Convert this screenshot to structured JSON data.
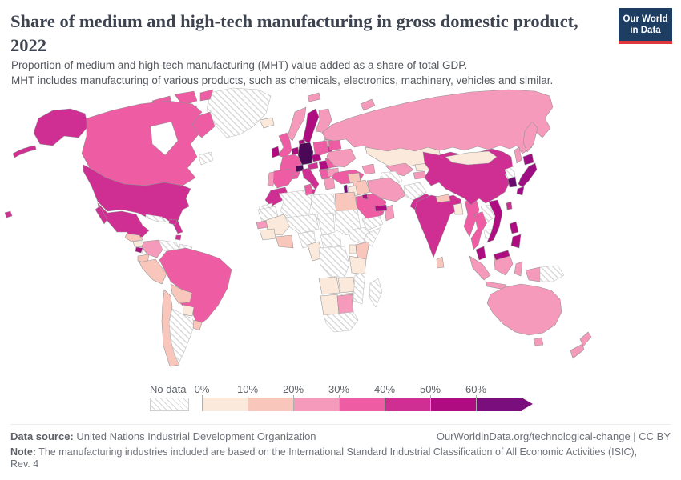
{
  "header": {
    "title": "Share of medium and high-tech manufacturing in gross domestic product, 2022",
    "subtitle_line1": "Proportion of medium and high-tech manufacturing (MHT) value added as a share of total GDP.",
    "subtitle_line2": "MHT includes manufacturing of various products, such as chemicals, electronics, machinery, vehicles and similar.",
    "logo_line1": "Our World",
    "logo_line2": "in Data",
    "logo_bg": "#1d3d63",
    "logo_accent": "#e0373c"
  },
  "footer": {
    "data_source_label": "Data source:",
    "data_source": "United Nations Industrial Development Organization",
    "attribution": "OurWorldinData.org/technological-change | CC BY",
    "note_label": "Note:",
    "note_line1": "The manufacturing industries included are based on the International Standard Industrial Classification of All Economic Activities (ISIC),",
    "note_line2": "Rev. 4"
  },
  "chart_data": {
    "type": "choropleth-map",
    "title": "Share of medium and high-tech manufacturing in gross domestic product",
    "year": "2022",
    "unit": "% of GDP",
    "legend": {
      "no_data_label": "No data",
      "ticks": [
        "0%",
        "10%",
        "20%",
        "30%",
        "40%",
        "50%",
        "60%"
      ],
      "bucket_ranges": [
        "0-10%",
        "10-20%",
        "20-30%",
        "30-40%",
        "40-50%",
        "50-60%",
        "60%+"
      ],
      "bucket_colors": [
        "#fbe9dc",
        "#f9c6bc",
        "#f59aba",
        "#ee5da4",
        "#cf2f92",
        "#ae0c80",
        "#7a0e7d"
      ],
      "color_overrides": {
        "germany": "#4b0857",
        "switzerland": "#4b0857",
        "japan": "#9c0e81",
        "south-korea": "#6b0a6e",
        "israel": "#6b0a6e"
      }
    },
    "country_buckets": {
      "united-states": 4,
      "canada": 3,
      "mexico": 4,
      "greenland": -1,
      "canada-maritime": -1,
      "guatemala": 1,
      "nicaragua": 0,
      "costa-rica": 5,
      "panama": -1,
      "cuba": -1,
      "dominican-republic": 4,
      "trinidad-and-tobago": 4,
      "colombia": 2,
      "venezuela": -1,
      "guyana-suriname": -1,
      "ecuador": 1,
      "peru": 1,
      "brazil": 3,
      "bolivia": 1,
      "paraguay": 0,
      "chile": 1,
      "argentina": -1,
      "uruguay": 1,
      "iceland": 0,
      "norway": 2,
      "sweden": 5,
      "finland": 2,
      "estonia": 2,
      "latvia": 2,
      "lithuania": 4,
      "denmark": 5,
      "united-kingdom": 3,
      "ireland": 5,
      "benelux": 5,
      "france": 3,
      "germany": 6,
      "switzerland": 6,
      "czechia": 5,
      "austria": 4,
      "poland": 3,
      "hungary-slovakia": 5,
      "italy": 4,
      "spain": 3,
      "portugal": 2,
      "balkans": 3,
      "romania": 3,
      "bulgaria": 2,
      "greece": 2,
      "ukraine": 2,
      "belarus": 3,
      "russia": 2,
      "kazakhstan": 0,
      "uzbekistan": 2,
      "turkmenistan": -1,
      "kyrgyzstan": 0,
      "tajikistan": 2,
      "afghanistan": -1,
      "pakistan": 4,
      "turkey": 3,
      "caucasus": 2,
      "syria": 1,
      "iraq": 1,
      "israel": 6,
      "jordan": 0,
      "saudi-arabia": 3,
      "yemen": -1,
      "oman": 2,
      "uae-qatar": 5,
      "kuwait": 5,
      "iran": 2,
      "morocco": 4,
      "western-sahara": -1,
      "algeria": -1,
      "tunisia": 3,
      "libya": -1,
      "egypt": 1,
      "mauritania": -1,
      "mali": 0,
      "senegal": 2,
      "guinea": 0,
      "ghana-ivory-coast": 1,
      "niger-burkina": -1,
      "nigeria": -1,
      "cameroon": 0,
      "chad": -1,
      "sudan": -1,
      "central-africa": -1,
      "ethiopia": -1,
      "somalia": -1,
      "kenya": 1,
      "uganda": 0,
      "drc": -1,
      "tanzania": 0,
      "angola": 0,
      "zambia": 0,
      "mozambique": -1,
      "zimbabwe": 0,
      "namibia": 0,
      "botswana": 2,
      "south-africa": -1,
      "madagascar": -1,
      "india": 4,
      "nepal": 1,
      "bangladesh": 0,
      "sri-lanka": 1,
      "myanmar": 3,
      "thailand": 3,
      "laos": -1,
      "cambodia": -1,
      "vietnam": 5,
      "malaysia": 5,
      "indonesia": 2,
      "philippines": 5,
      "taiwan": 4,
      "china": 4,
      "mongolia": 0,
      "north-korea": -1,
      "south-korea": 6,
      "japan": 6,
      "papua-new-guinea": -1,
      "australia": 2,
      "new-zealand": 2
    }
  }
}
